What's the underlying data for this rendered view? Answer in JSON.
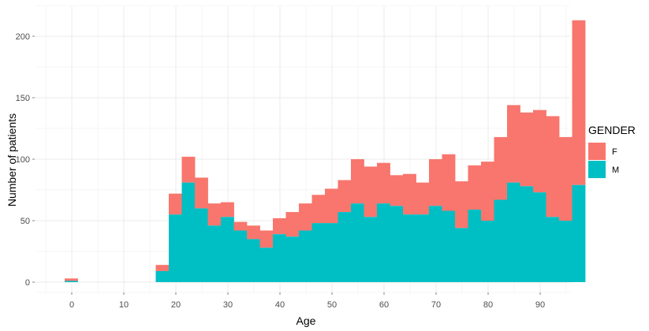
{
  "chart_data": {
    "type": "bar",
    "stacked": true,
    "histogram": true,
    "xlabel": "Age",
    "ylabel": "Number of patients",
    "xlim": [
      -5,
      95
    ],
    "ylim": [
      -10,
      220
    ],
    "x_ticks": [
      0,
      10,
      20,
      30,
      40,
      50,
      60,
      70,
      80,
      90
    ],
    "y_ticks": [
      0,
      50,
      100,
      150,
      200
    ],
    "grid": true,
    "bin_width": 2.5,
    "legend": {
      "title": "GENDER",
      "position": "right",
      "entries": [
        {
          "label": "F",
          "color": "#F8766D"
        },
        {
          "label": "M",
          "color": "#00BFC4"
        }
      ]
    },
    "bins": [
      {
        "x0": -1.25,
        "m": 1,
        "total": 3
      },
      {
        "x0": 1.25,
        "m": 0,
        "total": 0
      },
      {
        "x0": 3.75,
        "m": 0,
        "total": 0
      },
      {
        "x0": 6.25,
        "m": 0,
        "total": 0
      },
      {
        "x0": 8.75,
        "m": 0,
        "total": 0
      },
      {
        "x0": 11.25,
        "m": 0,
        "total": 0
      },
      {
        "x0": 13.75,
        "m": 0,
        "total": 0
      },
      {
        "x0": 16.25,
        "m": 9,
        "total": 14
      },
      {
        "x0": 18.75,
        "m": 55,
        "total": 72
      },
      {
        "x0": 21.25,
        "m": 81,
        "total": 102
      },
      {
        "x0": 23.75,
        "m": 60,
        "total": 85
      },
      {
        "x0": 26.25,
        "m": 46,
        "total": 64
      },
      {
        "x0": 28.75,
        "m": 53,
        "total": 65
      },
      {
        "x0": 31.25,
        "m": 42,
        "total": 49
      },
      {
        "x0": 33.75,
        "m": 35,
        "total": 46
      },
      {
        "x0": 36.25,
        "m": 28,
        "total": 42
      },
      {
        "x0": 38.75,
        "m": 39,
        "total": 52
      },
      {
        "x0": 41.25,
        "m": 37,
        "total": 57
      },
      {
        "x0": 43.75,
        "m": 42,
        "total": 64
      },
      {
        "x0": 46.25,
        "m": 48,
        "total": 71
      },
      {
        "x0": 48.75,
        "m": 48,
        "total": 76
      },
      {
        "x0": 51.25,
        "m": 57,
        "total": 83
      },
      {
        "x0": 53.75,
        "m": 64,
        "total": 100
      },
      {
        "x0": 56.25,
        "m": 53,
        "total": 94
      },
      {
        "x0": 58.75,
        "m": 64,
        "total": 97
      },
      {
        "x0": 61.25,
        "m": 62,
        "total": 87
      },
      {
        "x0": 63.75,
        "m": 55,
        "total": 88
      },
      {
        "x0": 66.25,
        "m": 55,
        "total": 81
      },
      {
        "x0": 68.75,
        "m": 62,
        "total": 100
      },
      {
        "x0": 71.25,
        "m": 58,
        "total": 104
      },
      {
        "x0": 73.75,
        "m": 44,
        "total": 82
      },
      {
        "x0": 76.25,
        "m": 59,
        "total": 95
      },
      {
        "x0": 78.75,
        "m": 50,
        "total": 98
      },
      {
        "x0": 81.25,
        "m": 67,
        "total": 118
      },
      {
        "x0": 83.75,
        "m": 81,
        "total": 144
      },
      {
        "x0": 86.25,
        "m": 78,
        "total": 138
      },
      {
        "x0": 88.75,
        "m": 73,
        "total": 140
      },
      {
        "x0": 91.25,
        "m": 53,
        "total": 135
      },
      {
        "x0": 93.75,
        "m": 50,
        "total": 118
      },
      {
        "x0": 96.25,
        "m": 79,
        "total": 213
      }
    ]
  }
}
